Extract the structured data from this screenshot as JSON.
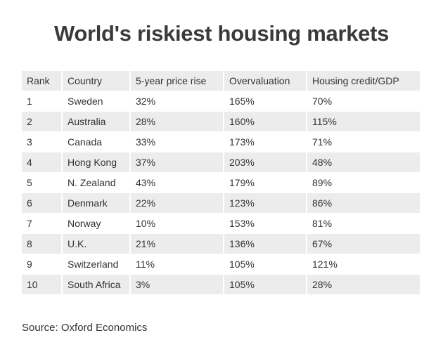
{
  "chart_data": {
    "type": "table",
    "title": "World's riskiest housing markets",
    "columns": [
      "Rank",
      "Country",
      "5-year price rise",
      "Overvaluation",
      "Housing credit/GDP"
    ],
    "rows": [
      [
        "1",
        "Sweden",
        "32%",
        "165%",
        "70%"
      ],
      [
        "2",
        "Australia",
        "28%",
        "160%",
        "115%"
      ],
      [
        "3",
        "Canada",
        "33%",
        "173%",
        "71%"
      ],
      [
        "4",
        "Hong Kong",
        "37%",
        "203%",
        "48%"
      ],
      [
        "5",
        "N. Zealand",
        "43%",
        "179%",
        "89%"
      ],
      [
        "6",
        "Denmark",
        "22%",
        "123%",
        "86%"
      ],
      [
        "7",
        "Norway",
        "10%",
        "153%",
        "81%"
      ],
      [
        "8",
        "U.K.",
        "21%",
        "136%",
        "67%"
      ],
      [
        "9",
        "Switzerland",
        "11%",
        "105%",
        "121%"
      ],
      [
        "10",
        "South Africa",
        "3%",
        "105%",
        "28%"
      ]
    ],
    "source": "Source: Oxford Economics"
  }
}
